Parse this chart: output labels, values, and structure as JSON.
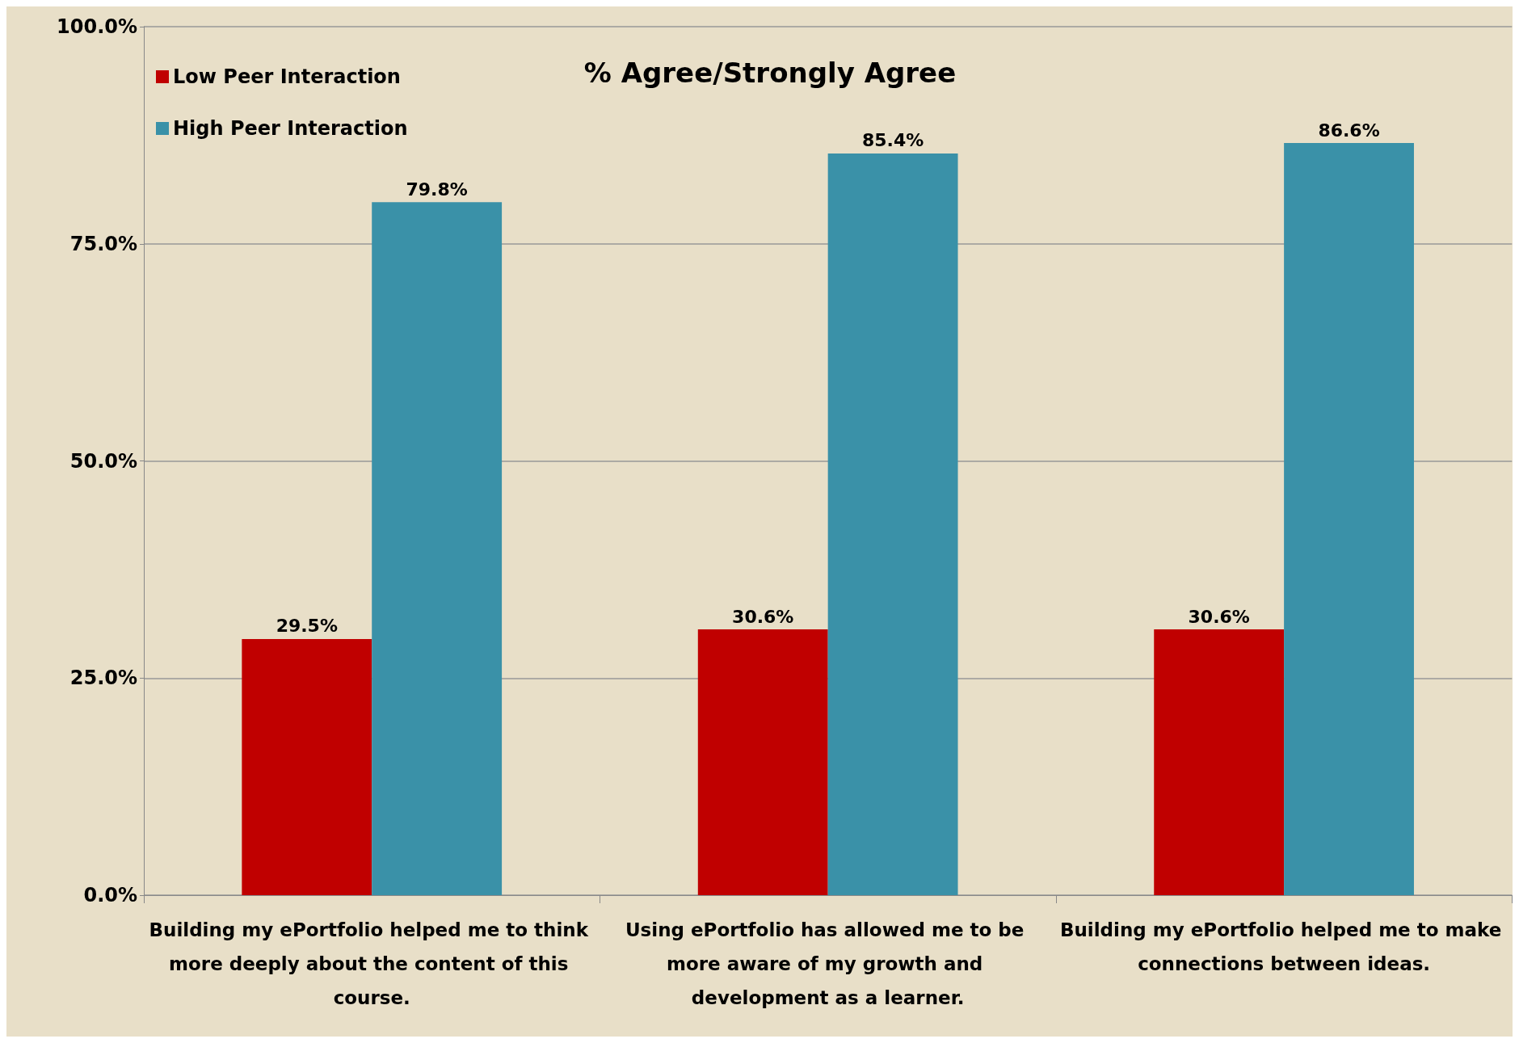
{
  "chart_data": {
    "type": "bar",
    "title": "% Agree/Strongly Agree",
    "categories": [
      "Building my ePortfolio helped me to think more deeply about the content of this course.",
      "Using ePortfolio has allowed me to be more aware of my growth and development as a learner.",
      "Building my ePortfolio helped me to make connections between ideas."
    ],
    "series": [
      {
        "name": "Low Peer Interaction",
        "color": "#c00000",
        "values": [
          29.5,
          30.6,
          30.6
        ],
        "value_labels": [
          "29.5%",
          "30.6%",
          "30.6%"
        ]
      },
      {
        "name": "High Peer Interaction",
        "color": "#3a91a8",
        "values": [
          79.8,
          85.4,
          86.6
        ],
        "value_labels": [
          "79.8%",
          "85.4%",
          "86.6%"
        ]
      }
    ],
    "ylim": [
      0,
      100
    ],
    "yticks": [
      {
        "value": 0,
        "label": "0.0%"
      },
      {
        "value": 25,
        "label": "25.0%"
      },
      {
        "value": 50,
        "label": "50.0%"
      },
      {
        "value": 75,
        "label": "75.0%"
      },
      {
        "value": 100,
        "label": "100.0%"
      }
    ],
    "grid": "y",
    "legend": "top left"
  }
}
